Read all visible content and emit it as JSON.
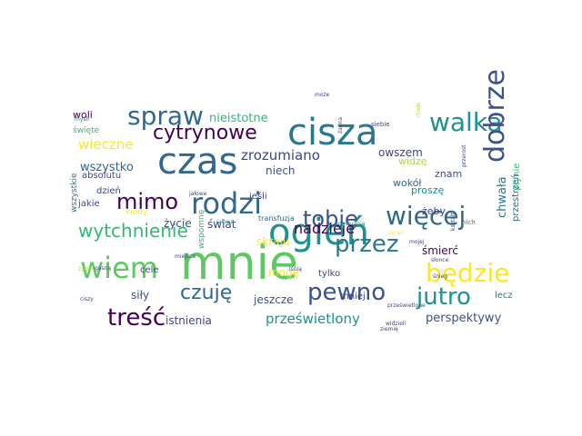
{
  "palette": {
    "teal": "#2a788e",
    "tealLight": "#21918c",
    "green": "#35b779",
    "greenLight": "#5ec962",
    "yellowGreen": "#addc30",
    "yellow": "#fde725",
    "purple": "#440154",
    "indigo": "#414487",
    "navy": "#3b528b",
    "slate": "#31688e"
  },
  "words": [
    {
      "text": "mnie",
      "color": "greenLight"
    },
    {
      "text": "ogień",
      "color": "tealLight"
    },
    {
      "text": "cisza",
      "color": "teal"
    },
    {
      "text": "czas",
      "color": "slate"
    },
    {
      "text": "rodzi",
      "color": "slate"
    },
    {
      "text": "wiem",
      "color": "greenLight"
    },
    {
      "text": "walka",
      "color": "tealLight"
    },
    {
      "text": "więcej",
      "color": "slate"
    },
    {
      "text": "spraw",
      "color": "slate"
    },
    {
      "text": "dobrze",
      "color": "navy"
    },
    {
      "text": "pewno",
      "color": "navy"
    },
    {
      "text": "przez",
      "color": "teal"
    },
    {
      "text": "będzie",
      "color": "yellow"
    },
    {
      "text": "jutro",
      "color": "tealLight"
    },
    {
      "text": "treść",
      "color": "purple"
    },
    {
      "text": "mimo",
      "color": "purple"
    },
    {
      "text": "tobie",
      "color": "navy"
    },
    {
      "text": "cytrynowe",
      "color": "purple"
    },
    {
      "text": "czuję",
      "color": "slate"
    },
    {
      "text": "wytchnienie",
      "color": "green"
    },
    {
      "text": "nadzieje",
      "color": "purple"
    },
    {
      "text": "zrozumiano",
      "color": "indigo"
    },
    {
      "text": "wieczne",
      "color": "yellow"
    },
    {
      "text": "wszystko",
      "color": "slate"
    },
    {
      "text": "chwała",
      "color": "teal"
    },
    {
      "text": "prześwietlony",
      "color": "tealLight"
    },
    {
      "text": "nieistotne",
      "color": "green"
    },
    {
      "text": "niech",
      "color": "navy"
    },
    {
      "text": "życie",
      "color": "navy"
    },
    {
      "text": "świat",
      "color": "indigo"
    },
    {
      "text": "skraju",
      "color": "yellow"
    },
    {
      "text": "mogę",
      "color": "yellow"
    },
    {
      "text": "jeszcze",
      "color": "navy"
    },
    {
      "text": "istnienia",
      "color": "indigo"
    },
    {
      "text": "perspektywy",
      "color": "navy"
    },
    {
      "text": "śmierć",
      "color": "purple"
    },
    {
      "text": "siły",
      "color": "navy"
    },
    {
      "text": "owszem",
      "color": "indigo"
    },
    {
      "text": "znam",
      "color": "navy"
    },
    {
      "text": "widzę",
      "color": "yellowGreen"
    },
    {
      "text": "proszę",
      "color": "tealLight"
    },
    {
      "text": "żeby",
      "color": "indigo"
    },
    {
      "text": "wokół",
      "color": "slate"
    },
    {
      "text": "tylko",
      "color": "indigo"
    },
    {
      "text": "mniej",
      "color": "indigo"
    },
    {
      "text": "lecz",
      "color": "teal"
    },
    {
      "text": "woli",
      "color": "purple"
    },
    {
      "text": "absolutu",
      "color": "indigo"
    },
    {
      "text": "dzień",
      "color": "indigo"
    },
    {
      "text": "jakie",
      "color": "indigo"
    },
    {
      "text": "kiedy",
      "color": "yellow"
    },
    {
      "text": "jeśli",
      "color": "indigo"
    },
    {
      "text": "cele",
      "color": "indigo"
    },
    {
      "text": "wspomnę",
      "color": "green"
    },
    {
      "text": "wszystkie",
      "color": "teal"
    },
    {
      "text": "przestrzeń",
      "color": "slate"
    },
    {
      "text": "płynie",
      "color": "green"
    },
    {
      "text": "święte",
      "color": "green"
    },
    {
      "text": "transfuzja",
      "color": "slate"
    },
    {
      "text": "popołudnia",
      "color": "tealLight"
    },
    {
      "text": "słonce",
      "color": "indigo"
    },
    {
      "text": "prześwietlone",
      "color": "indigo"
    },
    {
      "text": "śnieg",
      "color": "indigo"
    },
    {
      "text": "ziemię",
      "color": "indigo"
    },
    {
      "text": "żadna",
      "color": "indigo"
    },
    {
      "text": "siebie",
      "color": "indigo"
    },
    {
      "text": "teraz",
      "color": "yellow"
    },
    {
      "text": "jałowe",
      "color": "indigo"
    },
    {
      "text": "widzieli",
      "color": "indigo"
    },
    {
      "text": "chleb",
      "color": "yellowGreen"
    },
    {
      "text": "nich",
      "color": "teal"
    },
    {
      "text": "kształt",
      "color": "indigo"
    },
    {
      "text": "przerost",
      "color": "indigo"
    },
    {
      "text": "lśnią",
      "color": "indigo"
    },
    {
      "text": "mojej",
      "color": "indigo"
    },
    {
      "text": "jałowa",
      "color": "tealLight"
    },
    {
      "text": "życia",
      "color": "yellowGreen"
    },
    {
      "text": "ciszy",
      "color": "indigo"
    },
    {
      "text": "gasną",
      "color": "indigo"
    },
    {
      "text": "miejsca",
      "color": "indigo"
    },
    {
      "text": "może",
      "color": "indigo"
    },
    {
      "text": "myśli",
      "color": "teal"
    }
  ]
}
